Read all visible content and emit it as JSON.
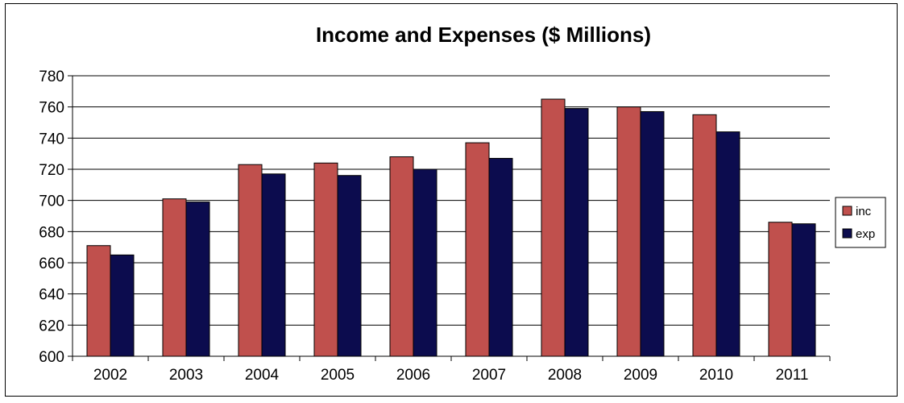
{
  "chart_data": {
    "type": "bar",
    "title": "Income and Expenses ($ Millions)",
    "categories": [
      "2002",
      "2003",
      "2004",
      "2005",
      "2006",
      "2007",
      "2008",
      "2009",
      "2010",
      "2011"
    ],
    "series": [
      {
        "name": "inc",
        "color": "#C0504D",
        "values": [
          671,
          701,
          723,
          724,
          728,
          737,
          765,
          760,
          755,
          686
        ]
      },
      {
        "name": "exp",
        "color": "#0C0C4E",
        "values": [
          665,
          699,
          717,
          716,
          720,
          727,
          759,
          757,
          744,
          685
        ]
      }
    ],
    "ylim": [
      600,
      780
    ],
    "yticks": [
      "600",
      "620",
      "640",
      "660",
      "680",
      "700",
      "720",
      "740",
      "760",
      "780"
    ],
    "grid": true,
    "legend": "right"
  }
}
